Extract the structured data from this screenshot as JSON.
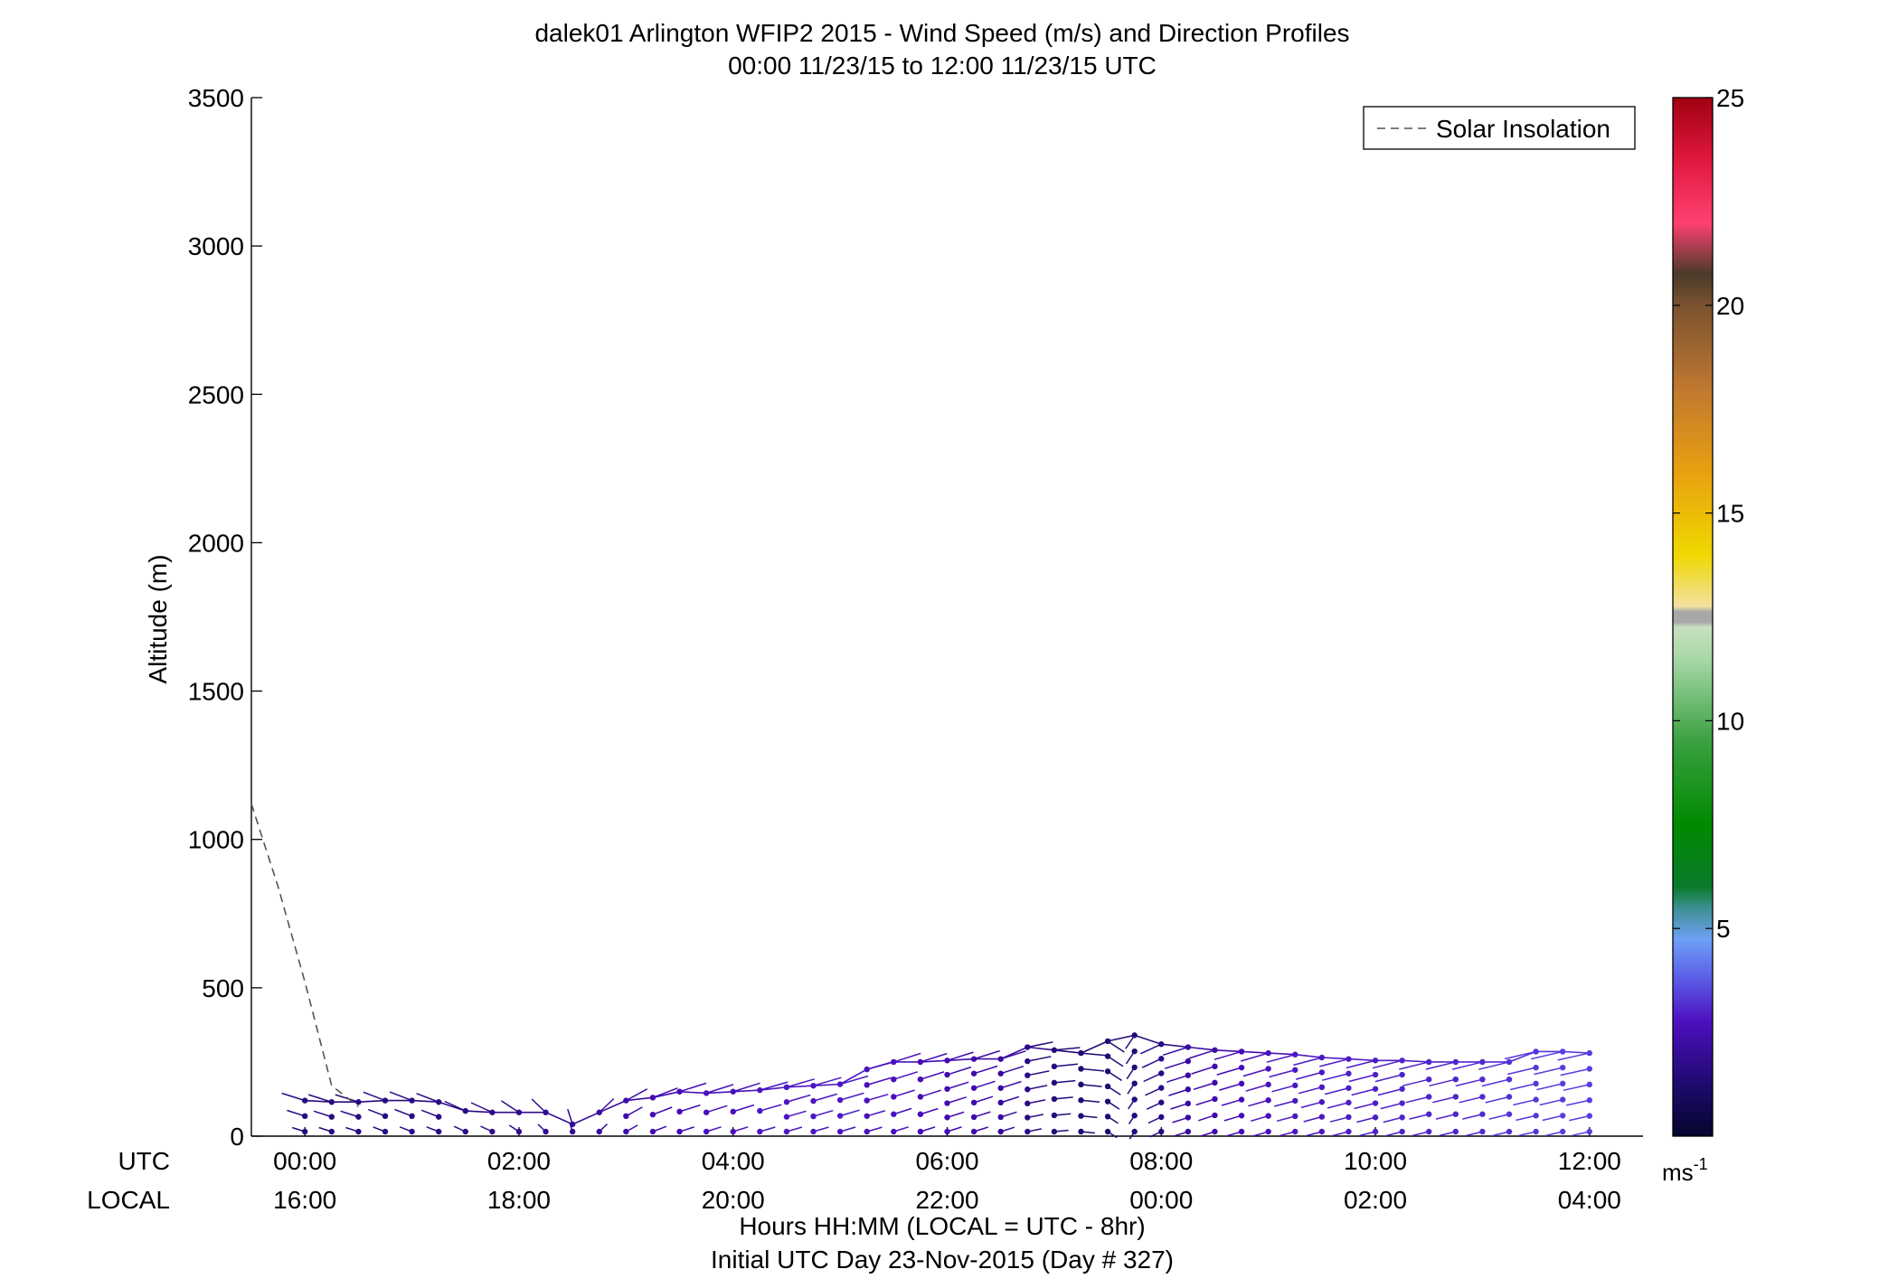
{
  "chart_data": {
    "type": "wind_barb_profile",
    "title": "dalek01 Arlington WFIP2 2015 - Wind Speed (m/s) and Direction Profiles",
    "subtitle": "00:00 11/23/15 to 12:00 11/23/15  UTC",
    "ylabel": "Altitude (m)",
    "xlabel": "Hours HH:MM  (LOCAL = UTC - 8hr)",
    "xlabel2": "Initial UTC Day 23-Nov-2015 (Day # 327)",
    "row_label_utc": "UTC",
    "row_label_local": "LOCAL",
    "ylim": [
      0,
      3500
    ],
    "yticks": [
      0,
      500,
      1000,
      1500,
      2000,
      2500,
      3000,
      3500
    ],
    "xlim_hours": [
      -0.5,
      12.5
    ],
    "xticks_hours": [
      0,
      2,
      4,
      6,
      8,
      10,
      12
    ],
    "xtick_utc_labels": [
      "00:00",
      "02:00",
      "04:00",
      "06:00",
      "08:00",
      "10:00",
      "12:00"
    ],
    "xtick_local_labels": [
      "16:00",
      "18:00",
      "20:00",
      "22:00",
      "00:00",
      "02:00",
      "04:00"
    ],
    "legend": {
      "entries": [
        "Solar Insolation"
      ],
      "placement": "top-right"
    },
    "colorbar": {
      "range": [
        0,
        25
      ],
      "ticks": [
        5,
        10,
        15,
        20,
        25
      ],
      "unit_label": "ms",
      "unit_exponent": "-1"
    },
    "solar_insolation": {
      "hours": [
        -0.5,
        -0.25,
        0.0,
        0.25,
        0.5
      ],
      "altitude": [
        1120,
        840,
        520,
        170,
        100
      ]
    },
    "profiles_hours": [
      0.0,
      0.25,
      0.5,
      0.75,
      1.0,
      1.25,
      1.5,
      1.75,
      2.0,
      2.25,
      2.5,
      2.75,
      3.0,
      3.25,
      3.5,
      3.75,
      4.0,
      4.25,
      4.5,
      4.75,
      5.0,
      5.25,
      5.5,
      5.75,
      6.0,
      6.25,
      6.5,
      6.75,
      7.0,
      7.25,
      7.5,
      7.75,
      8.0,
      8.25,
      8.5,
      8.75,
      9.0,
      9.25,
      9.5,
      9.75,
      10.0,
      10.25,
      10.5,
      10.75,
      11.0,
      11.25,
      11.5,
      11.75,
      12.0
    ],
    "top_altitude_m": [
      120,
      115,
      115,
      120,
      120,
      115,
      85,
      80,
      80,
      80,
      40,
      80,
      120,
      130,
      150,
      145,
      150,
      155,
      165,
      170,
      175,
      225,
      250,
      250,
      255,
      260,
      260,
      300,
      290,
      280,
      320,
      340,
      310,
      300,
      290,
      285,
      280,
      275,
      265,
      260,
      255,
      255,
      250,
      250,
      250,
      250,
      285,
      285,
      280
    ],
    "wind_speed_ms": [
      1.5,
      1.5,
      1.5,
      1.5,
      1.6,
      1.6,
      1.6,
      1.7,
      1.7,
      1.8,
      1.8,
      2.0,
      2.2,
      2.3,
      2.4,
      2.5,
      2.5,
      2.6,
      2.6,
      2.6,
      2.6,
      2.5,
      2.5,
      2.4,
      2.3,
      2.2,
      2.0,
      1.6,
      1.4,
      1.3,
      1.3,
      1.4,
      1.6,
      2.0,
      2.2,
      2.4,
      2.5,
      2.6,
      2.6,
      2.7,
      2.7,
      2.8,
      2.8,
      2.8,
      2.9,
      3.0,
      3.1,
      3.2,
      3.2
    ],
    "wind_from_direction_deg": [
      300,
      300,
      300,
      305,
      305,
      305,
      310,
      310,
      320,
      330,
      350,
      30,
      45,
      55,
      60,
      60,
      60,
      62,
      62,
      62,
      62,
      62,
      60,
      60,
      60,
      60,
      60,
      70,
      80,
      100,
      140,
      200,
      230,
      240,
      240,
      242,
      242,
      244,
      244,
      245,
      245,
      245,
      246,
      246,
      246,
      246,
      247,
      247,
      248
    ]
  }
}
